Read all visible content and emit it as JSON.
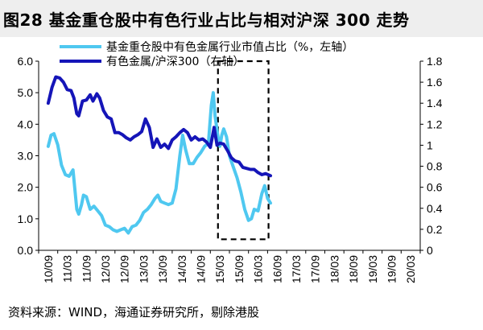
{
  "title": "图28 基金重仓股中有色行业占比与相对沪深 300 走势",
  "source": "资料来源：WIND，海通证券研究所，剔除港股",
  "colors": {
    "left_series": "#4fc8f0",
    "right_series": "#1515b8",
    "box": "#000000"
  },
  "chart_data": {
    "type": "line",
    "categories": [
      "10/09",
      "11/03",
      "11/09",
      "12/03",
      "12/09",
      "13/03",
      "13/09",
      "14/03",
      "14/09",
      "15/03",
      "15/09",
      "16/03",
      "16/09",
      "17/03",
      "17/09",
      "18/03",
      "18/09",
      "19/03",
      "19/09",
      "20/03"
    ],
    "y_left_lim": [
      0,
      6
    ],
    "y_left_ticks": [
      "0.0",
      "1.0",
      "2.0",
      "3.0",
      "4.0",
      "5.0",
      "6.0"
    ],
    "y_right_lim": [
      0,
      1.8
    ],
    "y_right_ticks": [
      "0",
      "0.2",
      "0.4",
      "0.6",
      "0.8",
      "1",
      "1.2",
      "1.4",
      "1.6",
      "1.8"
    ],
    "grid": false,
    "legend_position": "top",
    "series": [
      {
        "name": "基金重仓股中有色金属行业市值占比（%，左轴）",
        "axis": "left",
        "points": [
          [
            0,
            3.3
          ],
          [
            0.15,
            3.65
          ],
          [
            0.3,
            3.7
          ],
          [
            0.5,
            3.35
          ],
          [
            0.7,
            2.7
          ],
          [
            0.9,
            2.4
          ],
          [
            1.1,
            2.35
          ],
          [
            1.3,
            2.55
          ],
          [
            1.5,
            1.3
          ],
          [
            1.6,
            1.15
          ],
          [
            1.75,
            1.45
          ],
          [
            1.85,
            1.75
          ],
          [
            2.0,
            1.7
          ],
          [
            2.2,
            1.3
          ],
          [
            2.4,
            1.4
          ],
          [
            2.6,
            1.25
          ],
          [
            2.8,
            1.1
          ],
          [
            3.0,
            0.8
          ],
          [
            3.2,
            0.75
          ],
          [
            3.4,
            0.65
          ],
          [
            3.6,
            0.6
          ],
          [
            3.8,
            0.65
          ],
          [
            4.0,
            0.7
          ],
          [
            4.2,
            0.55
          ],
          [
            4.4,
            0.75
          ],
          [
            4.6,
            0.8
          ],
          [
            4.8,
            0.95
          ],
          [
            5.0,
            1.2
          ],
          [
            5.2,
            1.3
          ],
          [
            5.4,
            1.45
          ],
          [
            5.6,
            1.65
          ],
          [
            5.75,
            1.75
          ],
          [
            5.9,
            1.55
          ],
          [
            6.1,
            1.5
          ],
          [
            6.3,
            1.45
          ],
          [
            6.5,
            1.5
          ],
          [
            6.7,
            1.95
          ],
          [
            6.9,
            3.0
          ],
          [
            7.05,
            3.65
          ],
          [
            7.2,
            3.2
          ],
          [
            7.4,
            2.75
          ],
          [
            7.6,
            2.75
          ],
          [
            7.8,
            2.95
          ],
          [
            8.0,
            3.1
          ],
          [
            8.2,
            3.3
          ],
          [
            8.4,
            3.4
          ],
          [
            8.55,
            4.6
          ],
          [
            8.65,
            5.0
          ],
          [
            8.75,
            4.25
          ],
          [
            8.9,
            3.6
          ],
          [
            9.0,
            3.3
          ],
          [
            9.1,
            3.65
          ],
          [
            9.2,
            3.85
          ],
          [
            9.35,
            3.6
          ],
          [
            9.5,
            3.0
          ],
          [
            9.7,
            2.65
          ],
          [
            9.9,
            2.3
          ],
          [
            10.1,
            1.85
          ],
          [
            10.3,
            1.3
          ],
          [
            10.5,
            0.95
          ],
          [
            10.65,
            1.0
          ],
          [
            10.8,
            1.3
          ],
          [
            11.0,
            1.25
          ],
          [
            11.2,
            1.8
          ],
          [
            11.35,
            2.05
          ],
          [
            11.5,
            1.65
          ],
          [
            11.65,
            1.5
          ]
        ]
      },
      {
        "name": "有色金属/沪深300（右轴）",
        "axis": "right",
        "points": [
          [
            0,
            1.4
          ],
          [
            0.2,
            1.55
          ],
          [
            0.4,
            1.65
          ],
          [
            0.6,
            1.64
          ],
          [
            0.8,
            1.6
          ],
          [
            1.0,
            1.53
          ],
          [
            1.2,
            1.52
          ],
          [
            1.35,
            1.45
          ],
          [
            1.5,
            1.3
          ],
          [
            1.6,
            1.28
          ],
          [
            1.8,
            1.42
          ],
          [
            2.0,
            1.43
          ],
          [
            2.2,
            1.48
          ],
          [
            2.35,
            1.42
          ],
          [
            2.55,
            1.49
          ],
          [
            2.7,
            1.45
          ],
          [
            2.9,
            1.33
          ],
          [
            3.1,
            1.27
          ],
          [
            3.3,
            1.25
          ],
          [
            3.5,
            1.12
          ],
          [
            3.7,
            1.12
          ],
          [
            3.9,
            1.1
          ],
          [
            4.1,
            1.07
          ],
          [
            4.3,
            1.05
          ],
          [
            4.5,
            1.08
          ],
          [
            4.7,
            1.1
          ],
          [
            4.9,
            1.13
          ],
          [
            5.1,
            1.25
          ],
          [
            5.3,
            1.17
          ],
          [
            5.5,
            0.98
          ],
          [
            5.7,
            1.06
          ],
          [
            5.9,
            0.98
          ],
          [
            6.1,
            1.01
          ],
          [
            6.3,
            0.97
          ],
          [
            6.5,
            1.05
          ],
          [
            6.7,
            1.08
          ],
          [
            6.9,
            1.12
          ],
          [
            7.1,
            1.15
          ],
          [
            7.3,
            1.12
          ],
          [
            7.5,
            1.05
          ],
          [
            7.7,
            1.08
          ],
          [
            7.9,
            1.05
          ],
          [
            8.1,
            1.06
          ],
          [
            8.3,
            1.03
          ],
          [
            8.5,
            0.98
          ],
          [
            8.7,
            1.17
          ],
          [
            8.85,
            1.0
          ],
          [
            9.0,
            1.02
          ],
          [
            9.2,
            1.01
          ],
          [
            9.4,
            0.95
          ],
          [
            9.6,
            0.88
          ],
          [
            9.8,
            0.85
          ],
          [
            10.0,
            0.84
          ],
          [
            10.2,
            0.79
          ],
          [
            10.4,
            0.78
          ],
          [
            10.6,
            0.77
          ],
          [
            10.8,
            0.77
          ],
          [
            11.0,
            0.74
          ],
          [
            11.2,
            0.72
          ],
          [
            11.4,
            0.73
          ],
          [
            11.65,
            0.71
          ]
        ]
      }
    ],
    "highlight_box": {
      "x_from": 8.9,
      "x_to": 11.55,
      "y_left_from": 0.35,
      "y_left_to": 6.0
    }
  }
}
